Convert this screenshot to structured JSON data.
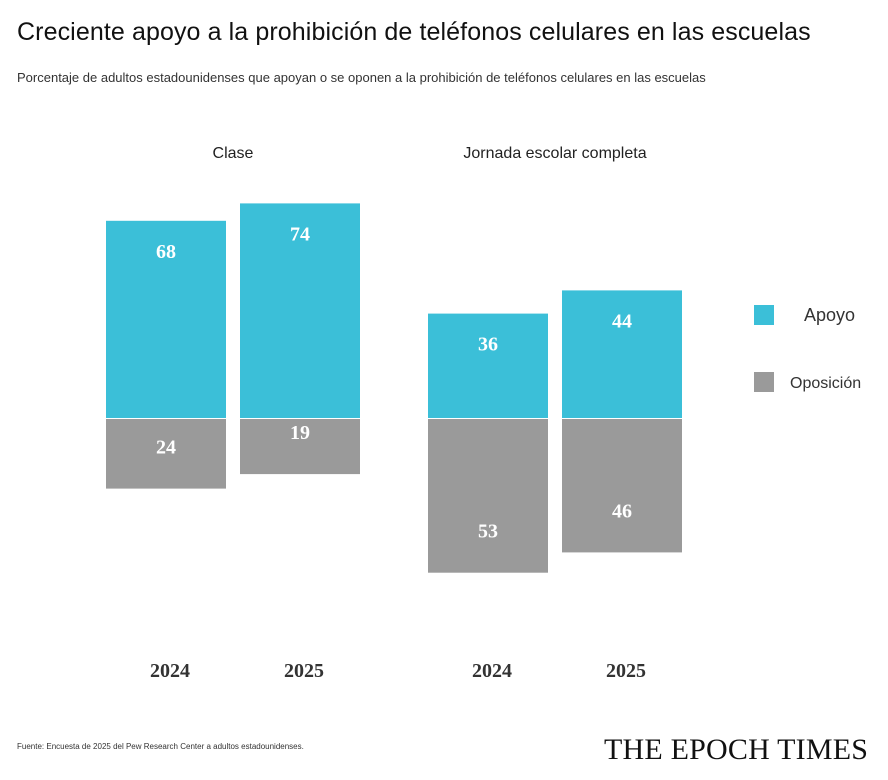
{
  "header": {
    "title": "Creciente apoyo a la prohibición de teléfonos celulares en las escuelas",
    "subtitle": "Porcentaje de adultos estadounidenses que apoyan o se oponen a la prohibición de teléfonos celulares en las escuelas"
  },
  "footer": {
    "source": "Fuente: Encuesta de 2025 del Pew Research Center a adultos estadounidenses.",
    "logo": "THE EPOCH TIMES"
  },
  "colors": {
    "support": "#3bbfd8",
    "oppose": "#9a9a9a"
  },
  "chart_data": {
    "type": "bar",
    "layout": "diverging-stacked",
    "groups": [
      {
        "name": "Clase",
        "categories": [
          "2024",
          "2025"
        ],
        "support": [
          68,
          74
        ],
        "oppose": [
          24,
          19
        ]
      },
      {
        "name": "Jornada escolar completa",
        "categories": [
          "2024",
          "2025"
        ],
        "support": [
          36,
          44
        ],
        "oppose": [
          53,
          46
        ]
      }
    ],
    "series": [
      {
        "name": "Apoyo",
        "color": "#3bbfd8"
      },
      {
        "name": "Oposición",
        "color": "#9a9a9a"
      }
    ],
    "legend": "right",
    "grid": false
  }
}
